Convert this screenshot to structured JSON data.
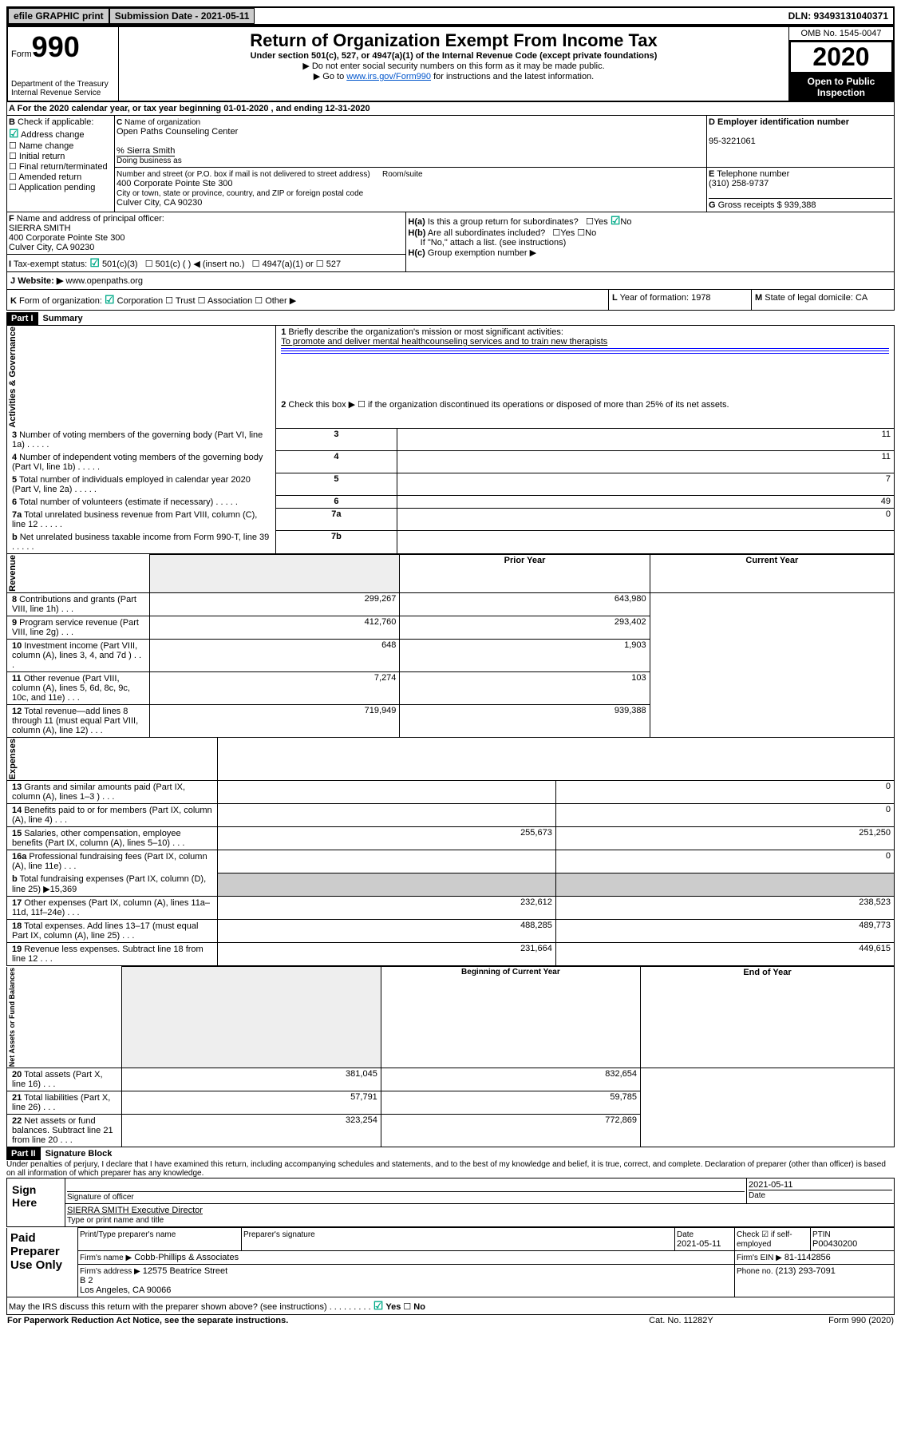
{
  "topbar": {
    "efile": "efile GRAPHIC print",
    "submission": "Submission Date - 2021-05-11",
    "dln": "DLN: 93493131040371"
  },
  "header": {
    "form_word": "Form",
    "form_num": "990",
    "dept": "Department of the Treasury",
    "irs": "Internal Revenue Service",
    "title": "Return of Organization Exempt From Income Tax",
    "subtitle": "Under section 501(c), 527, or 4947(a)(1) of the Internal Revenue Code (except private foundations)",
    "bullet1": "▶ Do not enter social security numbers on this form as it may be made public.",
    "bullet2_pre": "▶ Go to ",
    "bullet2_link": "www.irs.gov/Form990",
    "bullet2_post": " for instructions and the latest information.",
    "omb": "OMB No. 1545-0047",
    "year": "2020",
    "open": "Open to Public Inspection"
  },
  "periodA": "For the 2020 calendar year, or tax year beginning 01-01-2020     , and ending 12-31-2020",
  "boxB": {
    "label": "Check if applicable:",
    "addr": "Address change",
    "name": "Name change",
    "initial": "Initial return",
    "final": "Final return/terminated",
    "amended": "Amended return",
    "app": "Application pending"
  },
  "boxC": {
    "label": "Name of organization",
    "org": "Open Paths Counseling Center",
    "care": "% Sierra Smith",
    "dba_label": "Doing business as",
    "addr_label": "Number and street (or P.O. box if mail is not delivered to street address)",
    "room": "Room/suite",
    "addr": "400 Corporate Pointe Ste 300",
    "city_label": "City or town, state or province, country, and ZIP or foreign postal code",
    "city": "Culver City, CA  90230"
  },
  "boxD": {
    "label": "Employer identification number",
    "val": "95-3221061"
  },
  "boxE": {
    "label": "Telephone number",
    "val": "(310) 258-9737"
  },
  "boxG": {
    "label": "Gross receipts $",
    "val": "939,388"
  },
  "boxF": {
    "label": "Name and address of principal officer:",
    "name": "SIERRA SMITH",
    "addr1": "400 Corporate Pointe Ste 300",
    "addr2": "Culver City, CA  90230"
  },
  "boxH": {
    "ha": "Is this a group return for subordinates?",
    "hb": "Are all subordinates included?",
    "hb2": "If \"No,\" attach a list. (see instructions)",
    "hc": "Group exemption number ▶",
    "yes": "Yes",
    "no": "No"
  },
  "boxI": {
    "label": "Tax-exempt status:",
    "c3": "501(c)(3)",
    "c": "501(c) (   ) ◀ (insert no.)",
    "a1": "4947(a)(1) or",
    "s527": "527"
  },
  "boxJ": {
    "label": "Website: ▶",
    "val": "www.openpaths.org"
  },
  "boxK": {
    "label": "Form of organization:",
    "corp": "Corporation",
    "trust": "Trust",
    "assoc": "Association",
    "other": "Other ▶"
  },
  "boxL": {
    "label": "Year of formation:",
    "val": "1978"
  },
  "boxM": {
    "label": "State of legal domicile:",
    "val": "CA"
  },
  "part1": {
    "label": "Part I",
    "title": "Summary",
    "line1": "Briefly describe the organization's mission or most significant activities:",
    "mission": "To promote and deliver mental healthcounseling services and to train new therapists",
    "line2": "Check this box ▶ ☐  if the organization discontinued its operations or disposed of more than 25% of its net assets.",
    "sideA": "Activities & Governance",
    "sideR": "Revenue",
    "sideE": "Expenses",
    "sideN": "Net Assets or Fund Balances",
    "col_prior": "Prior Year",
    "col_current": "Current Year",
    "col_boy": "Beginning of Current Year",
    "col_eoy": "End of Year",
    "rows_gov": [
      {
        "n": "3",
        "t": "Number of voting members of the governing body (Part VI, line 1a)",
        "box": "3",
        "v": "11"
      },
      {
        "n": "4",
        "t": "Number of independent voting members of the governing body (Part VI, line 1b)",
        "box": "4",
        "v": "11"
      },
      {
        "n": "5",
        "t": "Total number of individuals employed in calendar year 2020 (Part V, line 2a)",
        "box": "5",
        "v": "7"
      },
      {
        "n": "6",
        "t": "Total number of volunteers (estimate if necessary)",
        "box": "6",
        "v": "49"
      },
      {
        "n": "7a",
        "t": "Total unrelated business revenue from Part VIII, column (C), line 12",
        "box": "7a",
        "v": "0"
      },
      {
        "n": "b",
        "t": "Net unrelated business taxable income from Form 990-T, line 39",
        "box": "7b",
        "v": ""
      }
    ],
    "rows_rev": [
      {
        "n": "8",
        "t": "Contributions and grants (Part VIII, line 1h)",
        "p": "299,267",
        "c": "643,980"
      },
      {
        "n": "9",
        "t": "Program service revenue (Part VIII, line 2g)",
        "p": "412,760",
        "c": "293,402"
      },
      {
        "n": "10",
        "t": "Investment income (Part VIII, column (A), lines 3, 4, and 7d )",
        "p": "648",
        "c": "1,903"
      },
      {
        "n": "11",
        "t": "Other revenue (Part VIII, column (A), lines 5, 6d, 8c, 9c, 10c, and 11e)",
        "p": "7,274",
        "c": "103"
      },
      {
        "n": "12",
        "t": "Total revenue—add lines 8 through 11 (must equal Part VIII, column (A), line 12)",
        "p": "719,949",
        "c": "939,388"
      }
    ],
    "rows_exp": [
      {
        "n": "13",
        "t": "Grants and similar amounts paid (Part IX, column (A), lines 1–3 )",
        "p": "",
        "c": "0"
      },
      {
        "n": "14",
        "t": "Benefits paid to or for members (Part IX, column (A), line 4)",
        "p": "",
        "c": "0"
      },
      {
        "n": "15",
        "t": "Salaries, other compensation, employee benefits (Part IX, column (A), lines 5–10)",
        "p": "255,673",
        "c": "251,250"
      },
      {
        "n": "16a",
        "t": "Professional fundraising fees (Part IX, column (A), line 11e)",
        "p": "",
        "c": "0"
      },
      {
        "n": "b",
        "t": "Total fundraising expenses (Part IX, column (D), line 25) ▶15,369",
        "p": "-",
        "c": "-"
      },
      {
        "n": "17",
        "t": "Other expenses (Part IX, column (A), lines 11a–11d, 11f–24e)",
        "p": "232,612",
        "c": "238,523"
      },
      {
        "n": "18",
        "t": "Total expenses. Add lines 13–17 (must equal Part IX, column (A), line 25)",
        "p": "488,285",
        "c": "489,773"
      },
      {
        "n": "19",
        "t": "Revenue less expenses. Subtract line 18 from line 12",
        "p": "231,664",
        "c": "449,615"
      }
    ],
    "rows_net": [
      {
        "n": "20",
        "t": "Total assets (Part X, line 16)",
        "p": "381,045",
        "c": "832,654"
      },
      {
        "n": "21",
        "t": "Total liabilities (Part X, line 26)",
        "p": "57,791",
        "c": "59,785"
      },
      {
        "n": "22",
        "t": "Net assets or fund balances. Subtract line 21 from line 20",
        "p": "323,254",
        "c": "772,869"
      }
    ]
  },
  "part2": {
    "label": "Part II",
    "title": "Signature Block",
    "perjury": "Under penalties of perjury, I declare that I have examined this return, including accompanying schedules and statements, and to the best of my knowledge and belief, it is true, correct, and complete. Declaration of preparer (other than officer) is based on all information of which preparer has any knowledge.",
    "sign": "Sign Here",
    "sig_officer": "Signature of officer",
    "date": "Date",
    "date_val": "2021-05-11",
    "typed": "SIERRA SMITH  Executive Director",
    "typed_label": "Type or print name and title",
    "paid": "Paid Preparer Use Only",
    "prep_name_label": "Print/Type preparer's name",
    "prep_sig_label": "Preparer's signature",
    "prep_date": "2021-05-11",
    "check_self": "Check ☑ if self-employed",
    "ptin_label": "PTIN",
    "ptin": "P00430200",
    "firm_label": "Firm's name    ▶",
    "firm": "Cobb-Phillips & Associates",
    "firm_ein_label": "Firm's EIN ▶",
    "firm_ein": "81-1142856",
    "firm_addr_label": "Firm's address ▶",
    "firm_addr": "12575 Beatrice Street\nB 2\nLos Angeles, CA  90066",
    "phone_label": "Phone no.",
    "phone": "(213) 293-7091",
    "discuss": "May the IRS discuss this return with the preparer shown above? (see instructions)",
    "footer1": "For Paperwork Reduction Act Notice, see the separate instructions.",
    "footer2": "Cat. No. 11282Y",
    "footer3": "Form 990 (2020)"
  }
}
